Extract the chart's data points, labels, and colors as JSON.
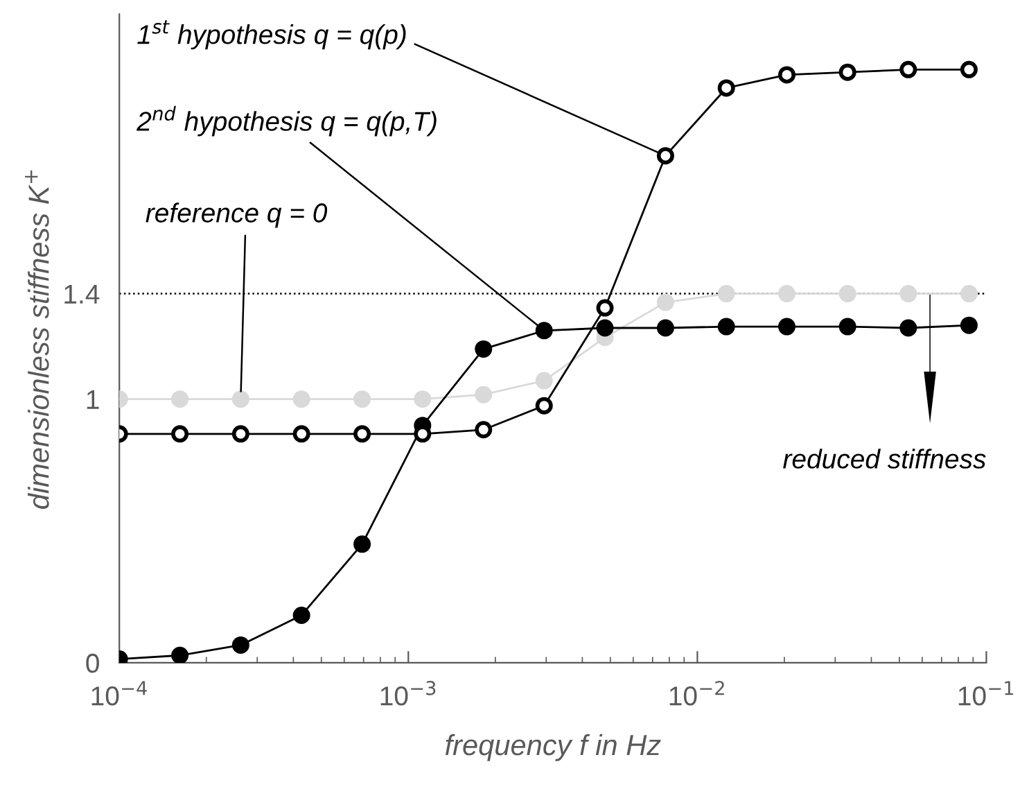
{
  "chart_data": {
    "type": "line",
    "xlabel": "frequency f in Hz",
    "ylabel": "dimensionless stiffness K$^{+}$",
    "log": "x",
    "x": [
      0.0001,
      0.000162,
      0.000263,
      0.000427,
      0.000692,
      0.00112,
      0.00182,
      0.00295,
      0.00479,
      0.00776,
      0.0126,
      0.0204,
      0.0331,
      0.0537,
      0.0871
    ],
    "series": [
      {
        "name": "1$^{st}$ hypothesis q = q(p)",
        "color": "#000000",
        "values": [
          0.868,
          0.868,
          0.868,
          0.868,
          0.868,
          0.868,
          0.884,
          0.975,
          1.346,
          1.923,
          2.18,
          2.23,
          2.24,
          2.25,
          2.25
        ]
      },
      {
        "name": "2$^{nd}$ hypothesis q = q(p,T)",
        "color": "#000000",
        "values": [
          0.014,
          0.028,
          0.067,
          0.18,
          0.45,
          0.9,
          1.19,
          1.26,
          1.27,
          1.27,
          1.275,
          1.275,
          1.275,
          1.27,
          1.28
        ]
      },
      {
        "name": "reference q = 0",
        "color": "#d9d9d9",
        "values": [
          1.0,
          1.0,
          1.0,
          1.0,
          1.0,
          1.0,
          1.017,
          1.07,
          1.234,
          1.367,
          1.4,
          1.4,
          1.4,
          1.4,
          1.4
        ]
      }
    ],
    "xlim": [
      0.0001,
      0.1
    ],
    "xticks": [
      {
        "value": 0.0001,
        "label": "10$^{−4}$"
      },
      {
        "value": 0.001,
        "label": "10$^{−3}$"
      },
      {
        "value": 0.01,
        "label": "10$^{−2}$"
      },
      {
        "value": 0.1,
        "label": "10$^{−1}$"
      }
    ],
    "ylim": [
      0,
      2.46
    ],
    "yticks": [
      0,
      1,
      1.4
    ],
    "ref_lines": [
      {
        "axis": "y",
        "value": 1.4,
        "color": "#000000",
        "line_style": "dotted"
      }
    ],
    "annotations": [
      "reduced stiffness"
    ],
    "marker": "circle",
    "line_style": "solid",
    "grid": false,
    "legend": false
  }
}
